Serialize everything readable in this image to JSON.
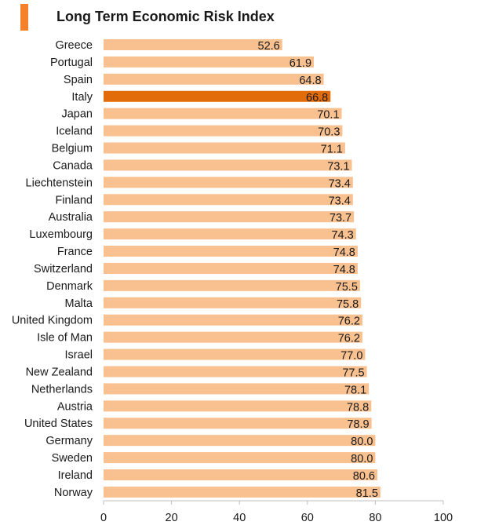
{
  "colors": {
    "accent": "#f5822a",
    "bar": "#f9c090",
    "highlight_bar": "#e36c0a",
    "axis": "#bfbfbf",
    "text": "#1a1a1a"
  },
  "chart_data": {
    "type": "bar",
    "orientation": "horizontal",
    "title": "Long Term Economic Risk Index",
    "xlabel": "",
    "ylabel": "",
    "xlim": [
      0,
      100
    ],
    "xticks": [
      0,
      20,
      40,
      60,
      80,
      100
    ],
    "grid": false,
    "highlight": "Italy",
    "categories": [
      "Greece",
      "Portugal",
      "Spain",
      "Italy",
      "Japan",
      "Iceland",
      "Belgium",
      "Canada",
      "Liechtenstein",
      "Finland",
      "Australia",
      "Luxembourg",
      "France",
      "Switzerland",
      "Denmark",
      "Malta",
      "United Kingdom",
      "Isle of Man",
      "Israel",
      "New Zealand",
      "Netherlands",
      "Austria",
      "United States",
      "Germany",
      "Sweden",
      "Ireland",
      "Norway"
    ],
    "values": [
      52.6,
      61.9,
      64.8,
      66.8,
      70.1,
      70.3,
      71.1,
      73.1,
      73.4,
      73.4,
      73.7,
      74.3,
      74.8,
      74.8,
      75.5,
      75.8,
      76.2,
      76.2,
      77.0,
      77.5,
      78.1,
      78.8,
      78.9,
      80.0,
      80.0,
      80.6,
      81.5
    ],
    "value_labels": [
      "52.6",
      "61.9",
      "64.8",
      "66.8",
      "70.1",
      "70.3",
      "71.1",
      "73.1",
      "73.4",
      "73.4",
      "73.7",
      "74.3",
      "74.8",
      "74.8",
      "75.5",
      "75.8",
      "76.2",
      "76.2",
      "77.0",
      "77.5",
      "78.1",
      "78.8",
      "78.9",
      "80.0",
      "80.0",
      "80.6",
      "81.5"
    ]
  }
}
